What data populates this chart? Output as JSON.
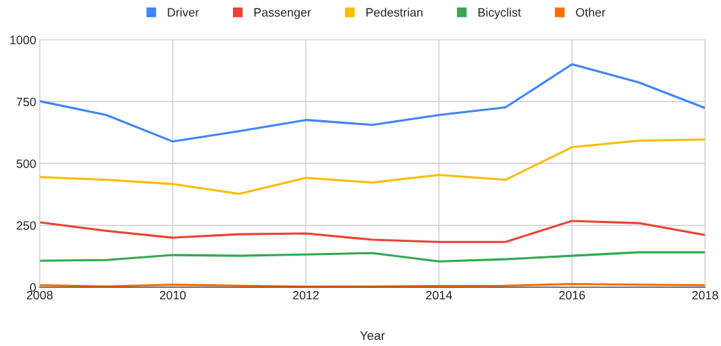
{
  "chart_data": {
    "type": "line",
    "xlabel": "Year",
    "x": [
      2008,
      2009,
      2010,
      2011,
      2012,
      2013,
      2014,
      2015,
      2016,
      2017,
      2018
    ],
    "series": [
      {
        "name": "Driver",
        "color": "#4285f4",
        "values": [
          752,
          696,
          589,
          631,
          676,
          656,
          696,
          727,
          901,
          828,
          724
        ]
      },
      {
        "name": "Passenger",
        "color": "#ea4335",
        "values": [
          262,
          228,
          200,
          214,
          217,
          192,
          183,
          183,
          268,
          259,
          211
        ]
      },
      {
        "name": "Pedestrian",
        "color": "#fbbc04",
        "values": [
          445,
          434,
          417,
          377,
          442,
          423,
          454,
          434,
          566,
          592,
          597
        ]
      },
      {
        "name": "Bicyclist",
        "color": "#34a853",
        "values": [
          107,
          110,
          130,
          127,
          132,
          138,
          104,
          113,
          127,
          141,
          141
        ]
      },
      {
        "name": "Other",
        "color": "#ff6d01",
        "values": [
          8,
          3,
          10,
          6,
          2,
          3,
          5,
          6,
          13,
          10,
          8
        ]
      }
    ],
    "xlim": [
      2008,
      2018
    ],
    "xticks": [
      2008,
      2010,
      2012,
      2014,
      2016,
      2018
    ],
    "ylim": [
      0,
      1000
    ],
    "yticks": [
      0,
      250,
      500,
      750,
      1000
    ],
    "grid": true,
    "legend": "top",
    "marker": "none",
    "line_style": "solid"
  }
}
